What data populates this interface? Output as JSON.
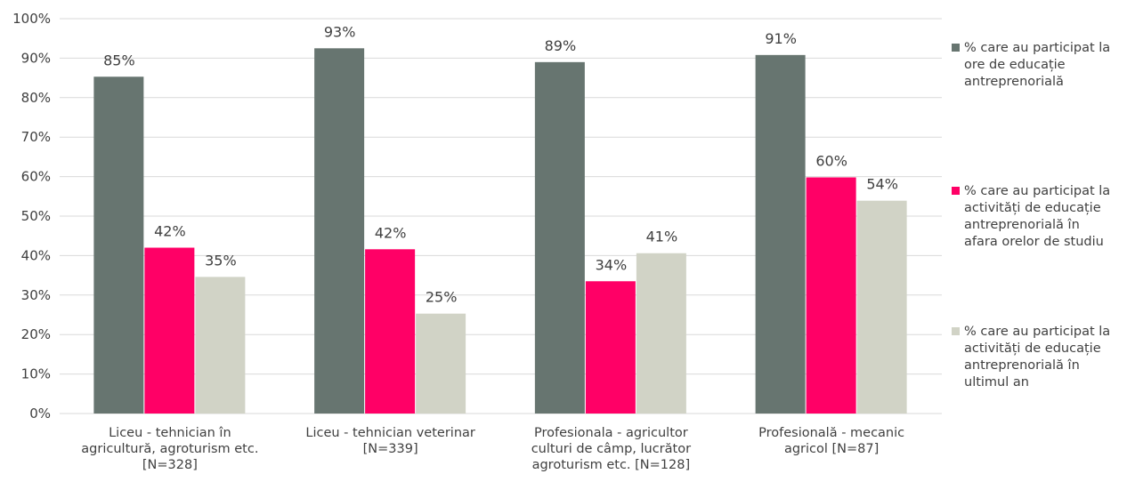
{
  "chart_data": {
    "type": "bar",
    "categories": [
      [
        "Liceu - tehnician în",
        "agricultură, agroturism etc.",
        "[N=328]"
      ],
      [
        "Liceu - tehnician veterinar",
        "[N=339]"
      ],
      [
        "Profesionala - agricultor",
        "culturi de câmp, lucrător",
        "agroturism etc. [N=128]"
      ],
      [
        "Profesională - mecanic",
        "agricol [N=87]"
      ]
    ],
    "series": [
      {
        "name": [
          "% care au participat la",
          "ore de educație",
          "antreprenorială"
        ],
        "color": "#677570",
        "values": [
          85.3,
          92.5,
          89.0,
          90.8
        ],
        "labels": [
          "85%",
          "93%",
          "89%",
          "91%"
        ]
      },
      {
        "name": [
          "% care au participat la",
          "activități de educație",
          "antreprenorială în",
          "afara orelor de studiu"
        ],
        "color": "#ff0066",
        "values": [
          42.0,
          41.6,
          33.5,
          59.8
        ],
        "labels": [
          "42%",
          "42%",
          "34%",
          "60%"
        ]
      },
      {
        "name": [
          "% care au participat la",
          "activități de educație",
          "antreprenorială în",
          "ultimul an"
        ],
        "color": "#d1d3c6",
        "values": [
          34.6,
          25.3,
          40.6,
          53.9
        ],
        "labels": [
          "35%",
          "25%",
          "41%",
          "54%"
        ]
      }
    ],
    "ylim": [
      0,
      100
    ],
    "yticks": [
      "0%",
      "10%",
      "20%",
      "30%",
      "40%",
      "50%",
      "60%",
      "70%",
      "80%",
      "90%",
      "100%"
    ],
    "grid": true,
    "legend": "right"
  }
}
